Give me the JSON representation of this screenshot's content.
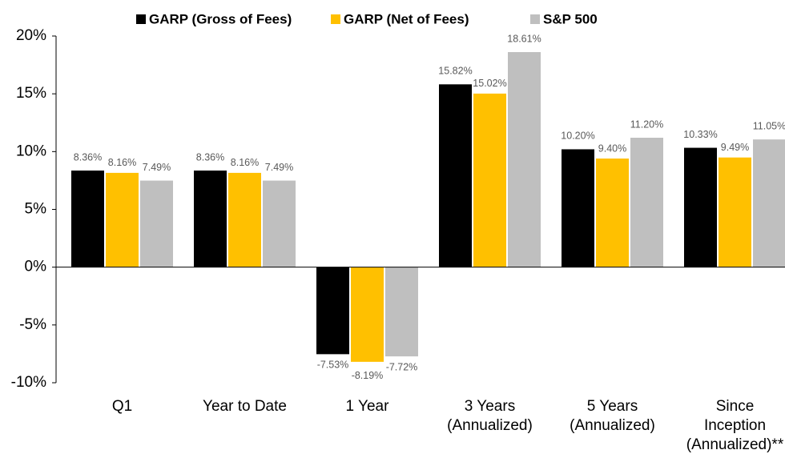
{
  "chart_data": {
    "type": "bar",
    "categories": [
      "Q1",
      "Year to Date",
      "1 Year",
      "3 Years\n(Annualized)",
      "5 Years\n(Annualized)",
      "Since\nInception\n(Annualized)**"
    ],
    "series": [
      {
        "name": "GARP (Gross of Fees)",
        "color": "#000000",
        "values": [
          8.36,
          8.36,
          -7.53,
          15.82,
          10.2,
          10.33
        ],
        "value_labels": [
          "8.36%",
          "8.36%",
          "-7.53%",
          "15.82%",
          "10.20%",
          "10.33%"
        ]
      },
      {
        "name": "GARP (Net of Fees)",
        "color": "#ffc000",
        "values": [
          8.16,
          8.16,
          -8.19,
          15.02,
          9.4,
          9.49
        ],
        "value_labels": [
          "8.16%",
          "8.16%",
          "-8.19%",
          "15.02%",
          "9.40%",
          "9.49%"
        ]
      },
      {
        "name": "S&P 500",
        "color": "#bfbfbf",
        "values": [
          7.49,
          7.49,
          -7.72,
          18.61,
          11.2,
          11.05
        ],
        "value_labels": [
          "7.49%",
          "7.49%",
          "-7.72%",
          "18.61%",
          "11.20%",
          "11.05%"
        ]
      }
    ],
    "ylim": [
      -10,
      20
    ],
    "yticks": [
      {
        "value": -10,
        "label": "-10%"
      },
      {
        "value": -5,
        "label": "-5%"
      },
      {
        "value": 0,
        "label": "0%"
      },
      {
        "value": 5,
        "label": "5%"
      },
      {
        "value": 10,
        "label": "10%"
      },
      {
        "value": 15,
        "label": "15%"
      },
      {
        "value": 20,
        "label": "20%"
      }
    ],
    "legend": "top"
  }
}
